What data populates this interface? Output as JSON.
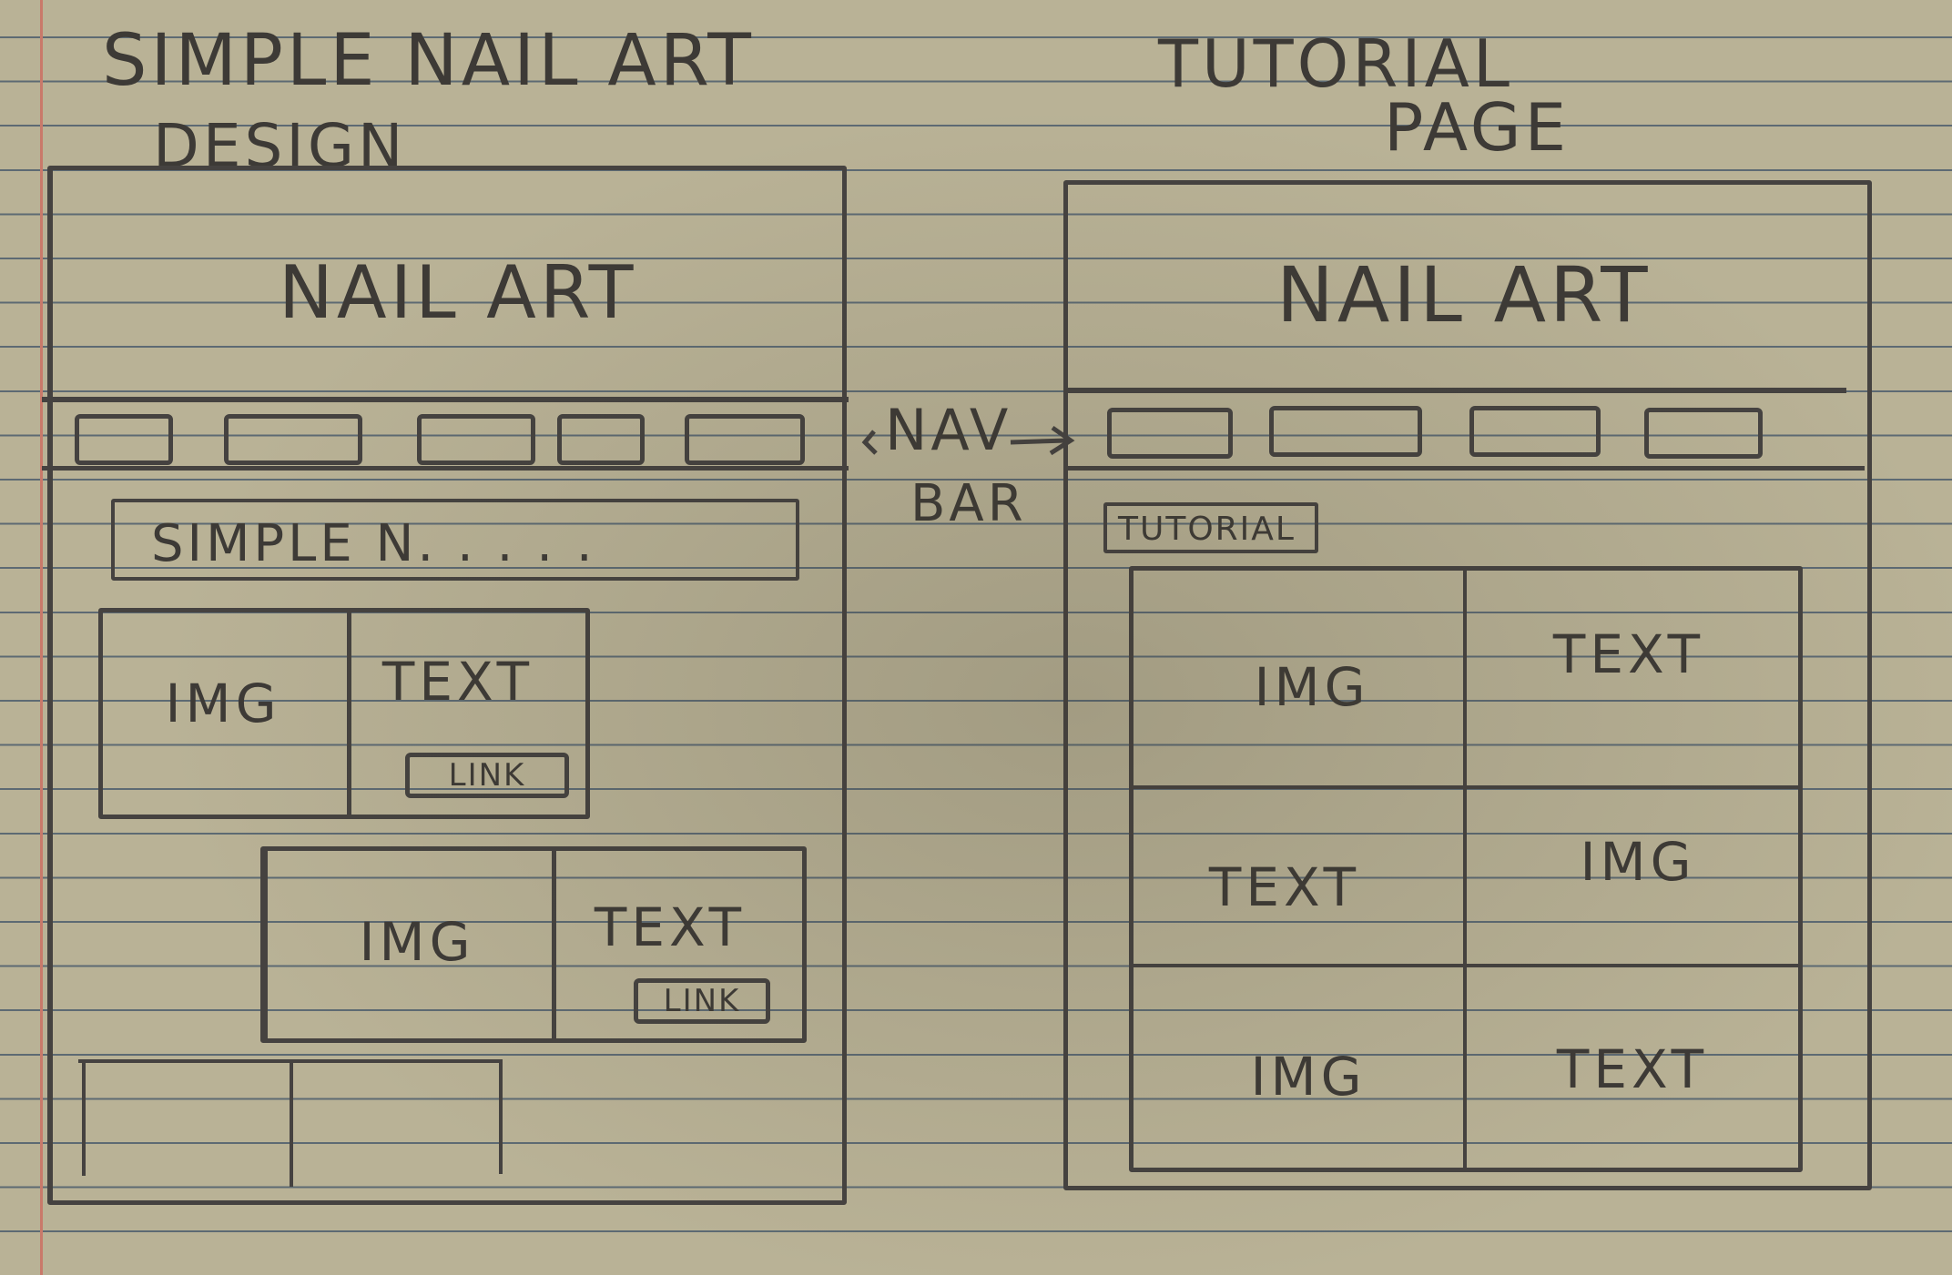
{
  "left_sketch": {
    "title_line1": "SIMPLE NAIL ART",
    "title_line2": "DESIGN",
    "header": "NAIL ART",
    "search_text": "SIMPLE N. . . . .",
    "card1": {
      "img": "IMG",
      "text": "TEXT",
      "link": "LINK"
    },
    "card2": {
      "img": "IMG",
      "text": "TEXT",
      "link": "LINK"
    }
  },
  "annotation": {
    "line1": "NAV",
    "line2": "BAR"
  },
  "right_sketch": {
    "title_line1": "TUTORIAL",
    "title_line2": "PAGE",
    "header": "NAIL ART",
    "tag": "TUTORIAL",
    "grid": [
      [
        "IMG",
        "TEXT"
      ],
      [
        "TEXT",
        "IMG"
      ],
      [
        "IMG",
        "TEXT"
      ]
    ]
  }
}
